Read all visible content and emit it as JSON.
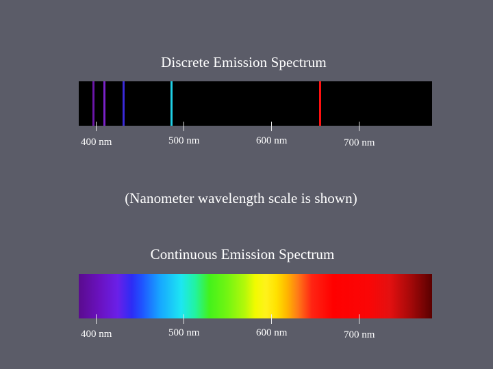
{
  "discrete": {
    "title": "Discrete Emission Spectrum",
    "lines": [
      {
        "wavelength_nm": 397,
        "color": "#6a16a8"
      },
      {
        "wavelength_nm": 410,
        "color": "#7a22c8"
      },
      {
        "wavelength_nm": 432,
        "color": "#3a2ad8"
      },
      {
        "wavelength_nm": 486,
        "color": "#1fd0e6"
      },
      {
        "wavelength_nm": 656,
        "color": "#ff1010"
      }
    ],
    "ticks": [
      {
        "wavelength_nm": 400,
        "label": "400 nm"
      },
      {
        "wavelength_nm": 500,
        "label": "500 nm"
      },
      {
        "wavelength_nm": 600,
        "label": "600 nm"
      },
      {
        "wavelength_nm": 700,
        "label": "700 nm"
      }
    ]
  },
  "scale_note": "(Nanometer wavelength scale is shown)",
  "continuous": {
    "title": "Continuous Emission Spectrum",
    "ticks": [
      {
        "wavelength_nm": 400,
        "label": "400 nm"
      },
      {
        "wavelength_nm": 500,
        "label": "500 nm"
      },
      {
        "wavelength_nm": 600,
        "label": "600 nm"
      },
      {
        "wavelength_nm": 700,
        "label": "700 nm"
      }
    ]
  }
}
